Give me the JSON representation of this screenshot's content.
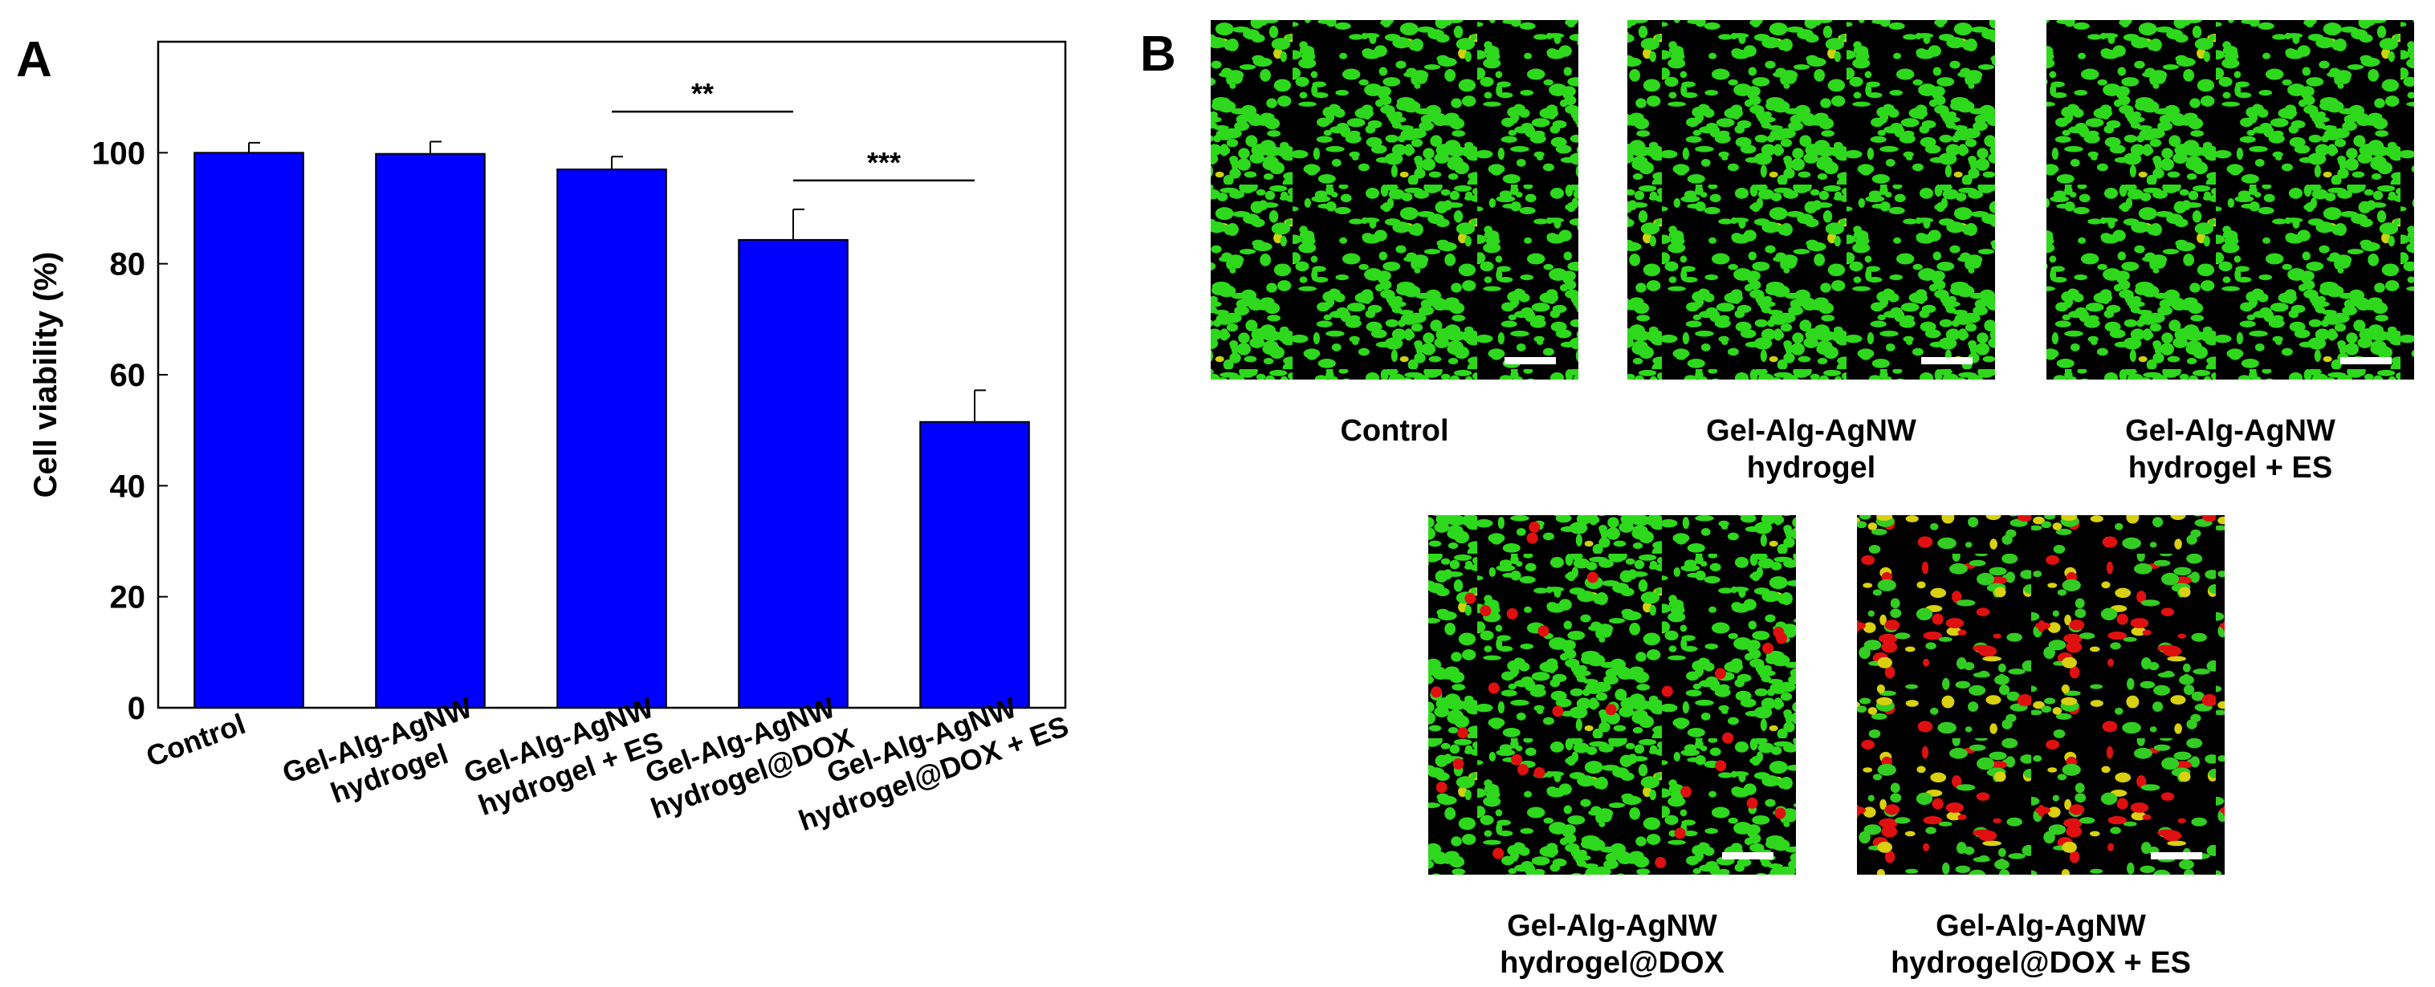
{
  "chart_data": {
    "type": "bar",
    "panel": "A",
    "y_label": "Cell viability (%)",
    "categories": [
      [
        "Control"
      ],
      [
        "Gel-Alg-AgNW",
        "hydrogel"
      ],
      [
        "Gel-Alg-AgNW",
        "hydrogel + ES"
      ],
      [
        "Gel-Alg-AgNW",
        "hydrogel@DOX"
      ],
      [
        "Gel-Alg-AgNW",
        "hydrogel@DOX + ES"
      ]
    ],
    "values": [
      100,
      99.8,
      97,
      84.3,
      51.5
    ],
    "errors": [
      1.8,
      2.2,
      2.3,
      5.5,
      5.7
    ],
    "color": "#0000ff",
    "ylim": [
      0,
      120
    ],
    "yticks": [
      0,
      20,
      40,
      60,
      80,
      100
    ],
    "annotations": [
      {
        "text": "**",
        "from": 2,
        "to": 3
      },
      {
        "text": "***",
        "from": 3,
        "to": 4
      }
    ]
  },
  "panel_b": {
    "panel": "B",
    "images": [
      {
        "label": [
          "Control"
        ]
      },
      {
        "label": [
          "Gel-Alg-AgNW",
          "hydrogel"
        ]
      },
      {
        "label": [
          "Gel-Alg-AgNW",
          "hydrogel + ES"
        ]
      },
      {
        "label": [
          "Gel-Alg-AgNW",
          "hydrogel@DOX"
        ]
      },
      {
        "label": [
          "Gel-Alg-AgNW",
          "hydrogel@DOX + ES"
        ]
      }
    ]
  }
}
